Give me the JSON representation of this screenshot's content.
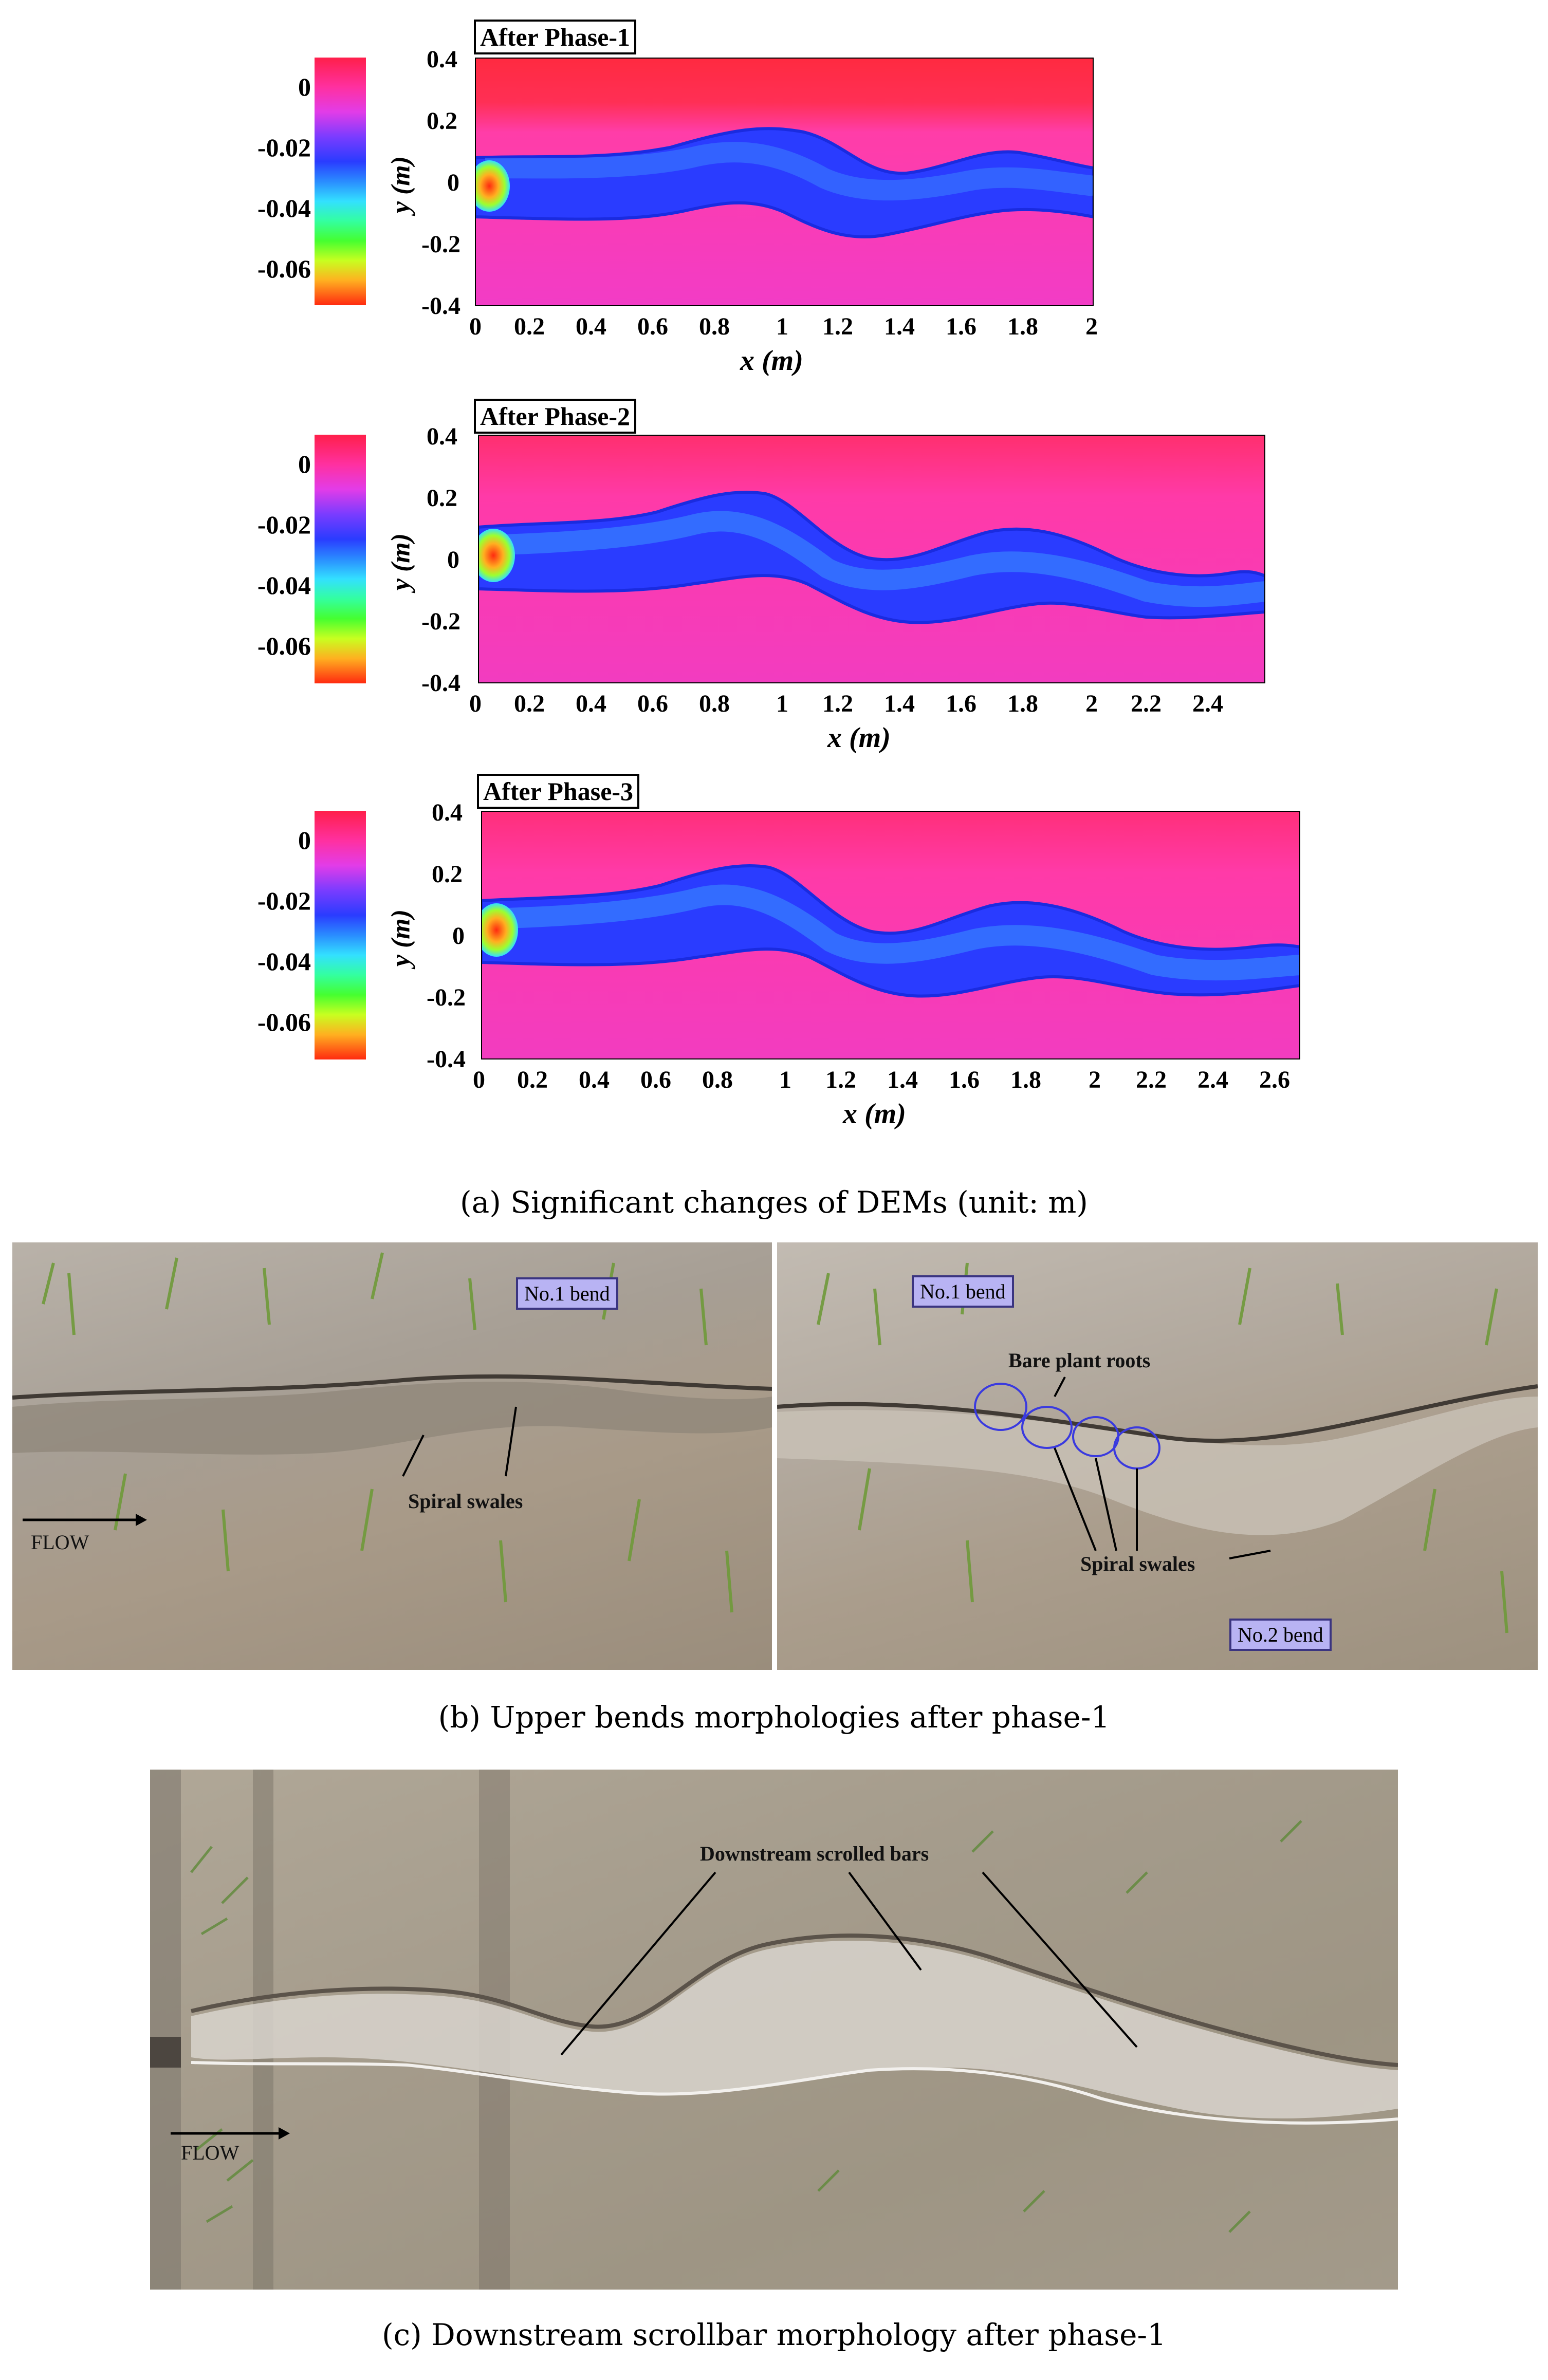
{
  "figure": {
    "colorbar_ticks": [
      "0",
      "-0.02",
      "-0.04",
      "-0.06"
    ],
    "ylabel": "y (m)",
    "xlabel": "x (m)",
    "yticks": [
      "0.4",
      "0.2",
      "0",
      "-0.2",
      "-0.4"
    ],
    "panels": [
      {
        "title": "After Phase-1",
        "xticks": [
          "0",
          "0.2",
          "0.4",
          "0.6",
          "0.8",
          "1",
          "1.2",
          "1.4",
          "1.6",
          "1.8",
          "2"
        ]
      },
      {
        "title": "After Phase-2",
        "xticks": [
          "0",
          "0.2",
          "0.4",
          "0.6",
          "0.8",
          "1",
          "1.2",
          "1.4",
          "1.6",
          "1.8",
          "2",
          "2.2",
          "2.4"
        ]
      },
      {
        "title": "After Phase-3",
        "xticks": [
          "0",
          "0.2",
          "0.4",
          "0.6",
          "0.8",
          "1",
          "1.2",
          "1.4",
          "1.6",
          "1.8",
          "2",
          "2.2",
          "2.4",
          "2.6"
        ]
      }
    ],
    "caption_a": "(a) Significant changes of DEMs (unit: m)",
    "caption_b": "(b) Upper bends morphologies after phase-1",
    "caption_c": "(c) Downstream scrollbar morphology after phase-1",
    "photo_b_left": {
      "bend_label": "No.1 bend",
      "swales_label": "Spiral swales",
      "flow_label": "FLOW"
    },
    "photo_b_right": {
      "bend1_label": "No.1 bend",
      "roots_label": "Bare plant roots",
      "swales_label": "Spiral swales",
      "bend2_label": "No.2 bend"
    },
    "photo_c": {
      "bars_label": "Downstream scrolled bars",
      "flow_label": "FLOW"
    }
  },
  "chart_data": [
    {
      "type": "heatmap",
      "title": "After Phase-1",
      "xlabel": "x (m)",
      "ylabel": "y (m)",
      "xlim": [
        0,
        2
      ],
      "ylim": [
        -0.4,
        0.4
      ],
      "colorbar_range": [
        -0.07,
        0.01
      ],
      "colorbar_unit": "m"
    },
    {
      "type": "heatmap",
      "title": "After Phase-2",
      "xlabel": "x (m)",
      "ylabel": "y (m)",
      "xlim": [
        0,
        2.55
      ],
      "ylim": [
        -0.4,
        0.4
      ],
      "colorbar_range": [
        -0.07,
        0.01
      ],
      "colorbar_unit": "m"
    },
    {
      "type": "heatmap",
      "title": "After Phase-3",
      "xlabel": "x (m)",
      "ylabel": "y (m)",
      "xlim": [
        0,
        2.65
      ],
      "ylim": [
        -0.4,
        0.4
      ],
      "colorbar_range": [
        -0.07,
        0.01
      ],
      "colorbar_unit": "m"
    }
  ]
}
